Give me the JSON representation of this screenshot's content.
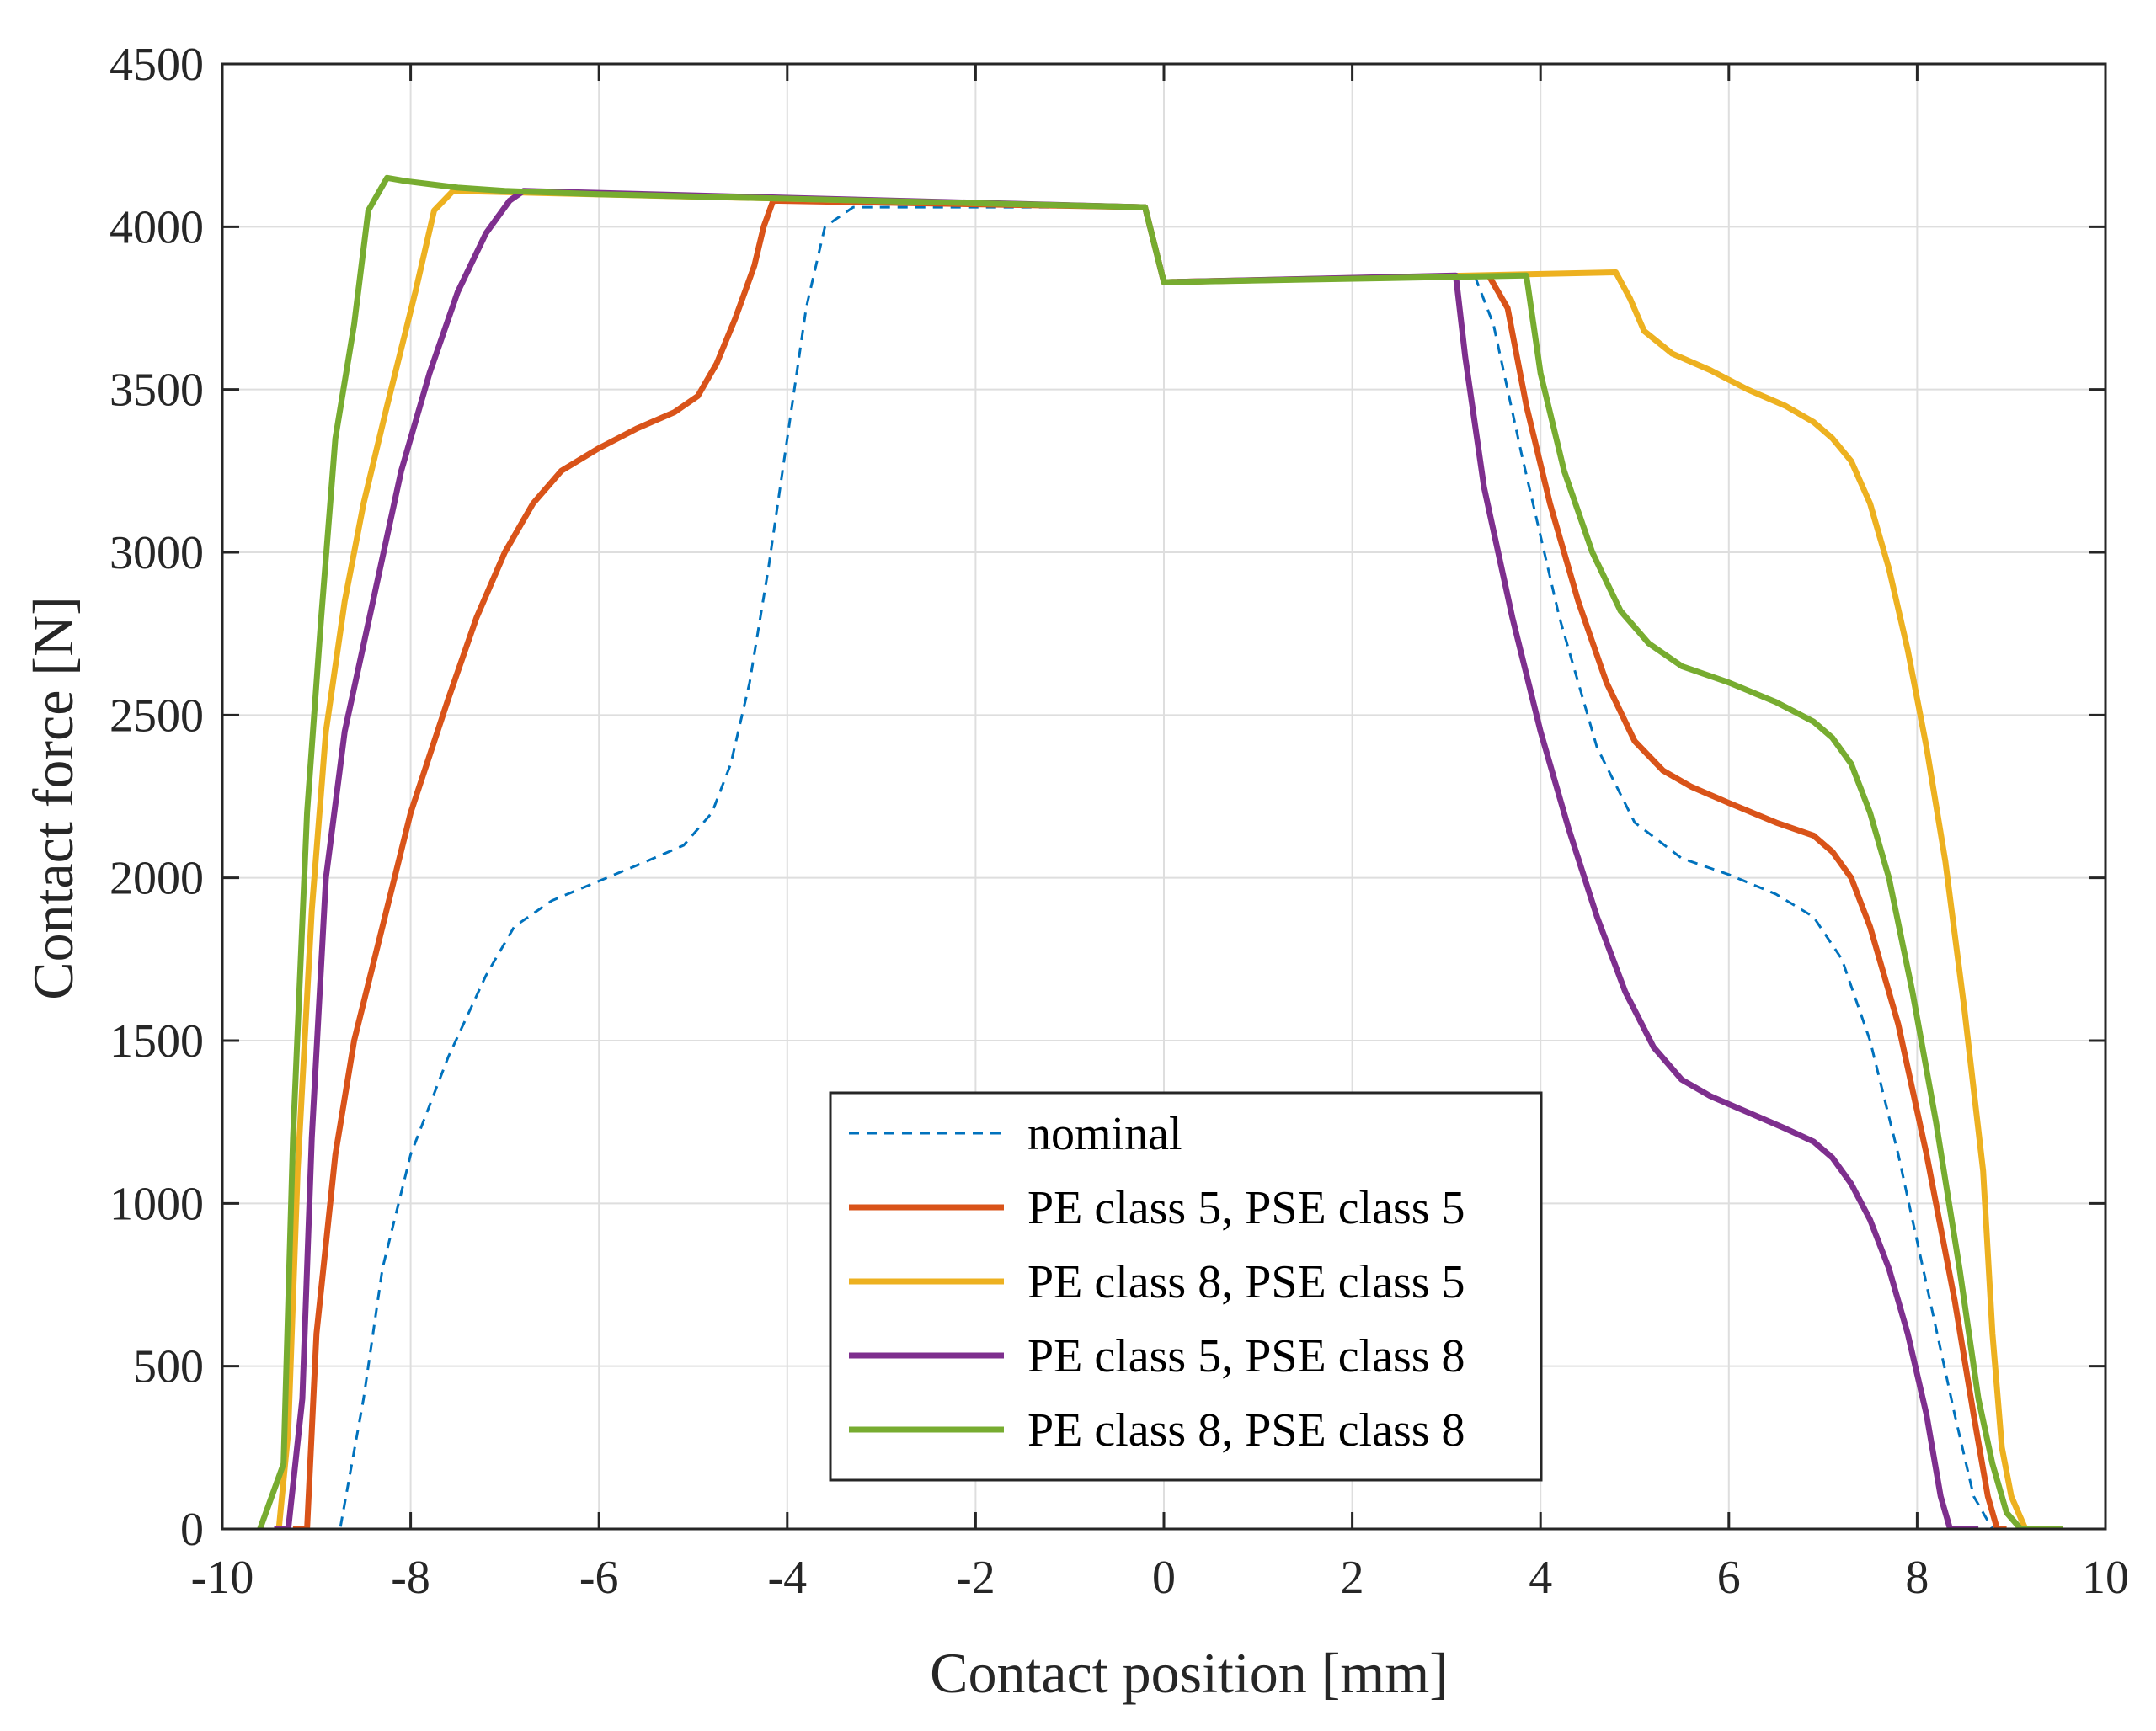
{
  "chart_data": {
    "type": "line",
    "title": "",
    "xlabel": "Contact position [mm]",
    "ylabel": "Contact force [N]",
    "xlim": [
      -10,
      10
    ],
    "ylim": [
      0,
      4500
    ],
    "xticks": [
      -10,
      -8,
      -6,
      -4,
      -2,
      0,
      2,
      4,
      6,
      8,
      10
    ],
    "yticks": [
      0,
      500,
      1000,
      1500,
      2000,
      2500,
      3000,
      3500,
      4000,
      4500
    ],
    "xtick_labels": [
      "-10",
      "-8",
      "-6",
      "-4",
      "-2",
      "0",
      "2",
      "4",
      "6",
      "8",
      "10"
    ],
    "ytick_labels": [
      "0",
      "500",
      "1000",
      "1500",
      "2000",
      "2500",
      "3000",
      "3500",
      "4000",
      "4500"
    ],
    "grid": true,
    "legend_position": "bottom-center",
    "series": [
      {
        "name": "nominal",
        "color": "#0072BD",
        "style": "dashed",
        "points": [
          [
            -9.1,
            0
          ],
          [
            -8.75,
            0
          ],
          [
            -8.5,
            400
          ],
          [
            -8.3,
            800
          ],
          [
            -8.0,
            1150
          ],
          [
            -7.6,
            1450
          ],
          [
            -7.2,
            1700
          ],
          [
            -6.9,
            1850
          ],
          [
            -6.5,
            1930
          ],
          [
            -6.0,
            1990
          ],
          [
            -5.5,
            2050
          ],
          [
            -5.1,
            2100
          ],
          [
            -4.8,
            2200
          ],
          [
            -4.6,
            2350
          ],
          [
            -4.4,
            2600
          ],
          [
            -4.2,
            2950
          ],
          [
            -4.0,
            3350
          ],
          [
            -3.8,
            3750
          ],
          [
            -3.6,
            4000
          ],
          [
            -3.3,
            4060
          ],
          [
            -0.2,
            4060
          ],
          [
            0,
            3830
          ],
          [
            3.3,
            3850
          ],
          [
            3.5,
            3700
          ],
          [
            3.8,
            3300
          ],
          [
            4.2,
            2800
          ],
          [
            4.6,
            2400
          ],
          [
            5.0,
            2170
          ],
          [
            5.5,
            2060
          ],
          [
            6.0,
            2010
          ],
          [
            6.5,
            1950
          ],
          [
            6.9,
            1880
          ],
          [
            7.2,
            1750
          ],
          [
            7.5,
            1500
          ],
          [
            7.8,
            1150
          ],
          [
            8.1,
            750
          ],
          [
            8.4,
            350
          ],
          [
            8.6,
            100
          ],
          [
            8.8,
            0
          ],
          [
            9.0,
            0
          ]
        ]
      },
      {
        "name": "PE class 5, PSE class 5",
        "color": "#D95319",
        "style": "solid",
        "points": [
          [
            -9.25,
            0
          ],
          [
            -9.1,
            0
          ],
          [
            -9.0,
            600
          ],
          [
            -8.8,
            1150
          ],
          [
            -8.6,
            1500
          ],
          [
            -8.3,
            1850
          ],
          [
            -8.0,
            2200
          ],
          [
            -7.6,
            2550
          ],
          [
            -7.3,
            2800
          ],
          [
            -7.0,
            3000
          ],
          [
            -6.7,
            3150
          ],
          [
            -6.4,
            3250
          ],
          [
            -6.0,
            3320
          ],
          [
            -5.6,
            3380
          ],
          [
            -5.2,
            3430
          ],
          [
            -4.95,
            3480
          ],
          [
            -4.75,
            3580
          ],
          [
            -4.55,
            3720
          ],
          [
            -4.35,
            3880
          ],
          [
            -4.25,
            4000
          ],
          [
            -4.15,
            4080
          ],
          [
            -0.2,
            4060
          ],
          [
            0,
            3830
          ],
          [
            3.45,
            3850
          ],
          [
            3.65,
            3750
          ],
          [
            3.85,
            3450
          ],
          [
            4.1,
            3150
          ],
          [
            4.4,
            2850
          ],
          [
            4.7,
            2600
          ],
          [
            5.0,
            2420
          ],
          [
            5.3,
            2330
          ],
          [
            5.6,
            2280
          ],
          [
            6.0,
            2230
          ],
          [
            6.5,
            2170
          ],
          [
            6.9,
            2130
          ],
          [
            7.1,
            2080
          ],
          [
            7.3,
            2000
          ],
          [
            7.5,
            1850
          ],
          [
            7.8,
            1550
          ],
          [
            8.1,
            1150
          ],
          [
            8.4,
            700
          ],
          [
            8.6,
            350
          ],
          [
            8.75,
            100
          ],
          [
            8.85,
            0
          ],
          [
            8.95,
            0
          ]
        ]
      },
      {
        "name": "PE class 8, PSE class 5",
        "color": "#EDB120",
        "style": "solid",
        "points": [
          [
            -9.4,
            0
          ],
          [
            -9.3,
            300
          ],
          [
            -9.2,
            1100
          ],
          [
            -9.05,
            1900
          ],
          [
            -8.9,
            2450
          ],
          [
            -8.7,
            2850
          ],
          [
            -8.5,
            3150
          ],
          [
            -8.25,
            3450
          ],
          [
            -7.95,
            3800
          ],
          [
            -7.75,
            4050
          ],
          [
            -7.55,
            4110
          ],
          [
            -0.2,
            4060
          ],
          [
            0,
            3830
          ],
          [
            4.8,
            3860
          ],
          [
            4.95,
            3780
          ],
          [
            5.1,
            3680
          ],
          [
            5.4,
            3610
          ],
          [
            5.8,
            3560
          ],
          [
            6.2,
            3500
          ],
          [
            6.6,
            3450
          ],
          [
            6.9,
            3400
          ],
          [
            7.1,
            3350
          ],
          [
            7.3,
            3280
          ],
          [
            7.5,
            3150
          ],
          [
            7.7,
            2950
          ],
          [
            7.9,
            2700
          ],
          [
            8.1,
            2400
          ],
          [
            8.3,
            2050
          ],
          [
            8.5,
            1600
          ],
          [
            8.7,
            1100
          ],
          [
            8.8,
            600
          ],
          [
            8.9,
            250
          ],
          [
            9.0,
            100
          ],
          [
            9.15,
            0
          ],
          [
            9.25,
            0
          ]
        ]
      },
      {
        "name": "PE class 5, PSE class 8",
        "color": "#7E2F8E",
        "style": "solid",
        "points": [
          [
            -9.45,
            0
          ],
          [
            -9.3,
            0
          ],
          [
            -9.15,
            400
          ],
          [
            -9.05,
            1200
          ],
          [
            -8.9,
            2000
          ],
          [
            -8.7,
            2450
          ],
          [
            -8.4,
            2850
          ],
          [
            -8.1,
            3250
          ],
          [
            -7.8,
            3550
          ],
          [
            -7.5,
            3800
          ],
          [
            -7.2,
            3980
          ],
          [
            -6.95,
            4080
          ],
          [
            -6.8,
            4110
          ],
          [
            -0.2,
            4060
          ],
          [
            0,
            3830
          ],
          [
            3.1,
            3850
          ],
          [
            3.2,
            3600
          ],
          [
            3.4,
            3200
          ],
          [
            3.7,
            2800
          ],
          [
            4.0,
            2450
          ],
          [
            4.3,
            2150
          ],
          [
            4.6,
            1880
          ],
          [
            4.9,
            1650
          ],
          [
            5.2,
            1480
          ],
          [
            5.5,
            1380
          ],
          [
            5.8,
            1330
          ],
          [
            6.2,
            1280
          ],
          [
            6.6,
            1230
          ],
          [
            6.9,
            1190
          ],
          [
            7.1,
            1140
          ],
          [
            7.3,
            1060
          ],
          [
            7.5,
            950
          ],
          [
            7.7,
            800
          ],
          [
            7.9,
            600
          ],
          [
            8.1,
            350
          ],
          [
            8.25,
            100
          ],
          [
            8.35,
            0
          ],
          [
            8.5,
            0
          ],
          [
            8.65,
            0
          ]
        ]
      },
      {
        "name": "PE class 8, PSE class 8",
        "color": "#77AC30",
        "style": "solid",
        "points": [
          [
            -9.6,
            0
          ],
          [
            -9.35,
            200
          ],
          [
            -9.25,
            1200
          ],
          [
            -9.1,
            2200
          ],
          [
            -8.95,
            2800
          ],
          [
            -8.8,
            3350
          ],
          [
            -8.6,
            3700
          ],
          [
            -8.45,
            4050
          ],
          [
            -8.25,
            4150
          ],
          [
            -8.05,
            4140
          ],
          [
            -7.5,
            4120
          ],
          [
            -7.0,
            4110
          ],
          [
            -6.0,
            4100
          ],
          [
            -0.2,
            4060
          ],
          [
            0,
            3830
          ],
          [
            3.85,
            3850
          ],
          [
            4.0,
            3550
          ],
          [
            4.25,
            3250
          ],
          [
            4.55,
            3000
          ],
          [
            4.85,
            2820
          ],
          [
            5.15,
            2720
          ],
          [
            5.5,
            2650
          ],
          [
            6.0,
            2600
          ],
          [
            6.5,
            2540
          ],
          [
            6.9,
            2480
          ],
          [
            7.1,
            2430
          ],
          [
            7.3,
            2350
          ],
          [
            7.5,
            2200
          ],
          [
            7.7,
            2000
          ],
          [
            7.95,
            1650
          ],
          [
            8.2,
            1250
          ],
          [
            8.45,
            800
          ],
          [
            8.65,
            400
          ],
          [
            8.8,
            200
          ],
          [
            8.95,
            50
          ],
          [
            9.1,
            0
          ],
          [
            9.55,
            0
          ]
        ]
      }
    ]
  }
}
